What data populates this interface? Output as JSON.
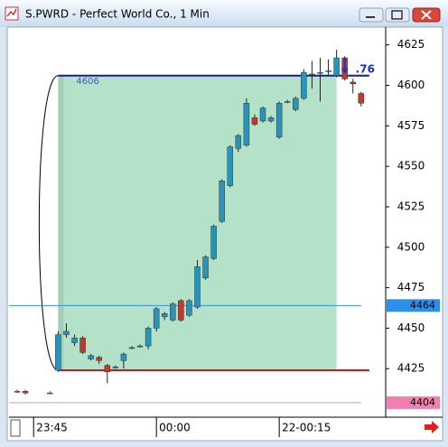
{
  "chart_data": {
    "type": "candlestick",
    "title": "S.PWRD - Perfect World Co., 1 Min",
    "x": [
      "23:43",
      "23:44",
      "23:47",
      "23:48",
      "23:49",
      "23:50",
      "23:51",
      "23:52",
      "23:53",
      "23:54",
      "23:55",
      "23:56",
      "23:57",
      "23:58",
      "23:59",
      "00:00",
      "00:01",
      "00:02",
      "00:03",
      "00:04",
      "00:05",
      "00:06",
      "00:07",
      "00:08",
      "00:09",
      "00:10",
      "00:11",
      "00:12",
      "00:13",
      "00:14",
      "00:15",
      "00:16",
      "00:17",
      "00:18",
      "00:19",
      "00:20",
      "00:21",
      "00:22",
      "00:23",
      "00:24",
      "00:25"
    ],
    "open": [
      4411,
      4411,
      4410,
      4424,
      4446,
      4441,
      4444,
      4431,
      4432,
      4427,
      4426,
      4430,
      4438,
      4439,
      4439,
      4450,
      4457,
      4455,
      4467,
      4458,
      4463,
      4481,
      4493,
      4516,
      4538,
      4561,
      4563,
      4580,
      4578,
      4578,
      4568,
      4590,
      4585,
      4592,
      4607,
      4608,
      4609,
      4606,
      4617,
      4602,
      4595
    ],
    "high": [
      4412,
      4412,
      4411,
      4448,
      4453,
      4446,
      4445,
      4434,
      4433,
      4428,
      4427,
      4435,
      4439,
      4440,
      4451,
      4463,
      4460,
      4466,
      4468,
      4468,
      4492,
      4495,
      4514,
      4542,
      4563,
      4570,
      4592,
      4582,
      4587,
      4581,
      4590,
      4591,
      4593,
      4610,
      4615,
      4617,
      4616,
      4622,
      4618,
      4604,
      4596
    ],
    "low": [
      4410,
      4409,
      4410,
      4423,
      4444,
      4439,
      4434,
      4430,
      4428,
      4416,
      4425,
      4425,
      4437,
      4438,
      4437,
      4448,
      4455,
      4454,
      4454,
      4457,
      4462,
      4480,
      4492,
      4515,
      4537,
      4559,
      4562,
      4575,
      4577,
      4577,
      4567,
      4589,
      4584,
      4591,
      4598,
      4590,
      4606,
      4605,
      4603,
      4595,
      4587
    ],
    "close": [
      4411,
      4410,
      4410,
      4446,
      4448,
      4444,
      4435,
      4433,
      4430,
      4423,
      4426,
      4434,
      4438,
      4439,
      4450,
      4462,
      4459,
      4465,
      4455,
      4467,
      4488,
      4494,
      4513,
      4541,
      4562,
      4569,
      4589,
      4576,
      4586,
      4580,
      4589,
      4590,
      4592,
      4608,
      4607,
      4608,
      4609,
      4617,
      4604,
      4601,
      4589
    ],
    "up_color": "#2a94b8",
    "down_color": "#c0392b",
    "xlim": [
      "23:42",
      "00:28"
    ],
    "xticks": [
      "23:45",
      "00:00",
      {
        "value": "00:15",
        "label": "22-00:15"
      }
    ],
    "ylim": [
      4395,
      4636
    ],
    "yticks": [
      4425,
      4450,
      4475,
      4500,
      4525,
      4550,
      4575,
      4600,
      4625
    ],
    "zone": {
      "from": "23:48",
      "to": "00:22",
      "top": 4606,
      "bottom": 4424,
      "color": "#b3e2c9"
    },
    "levels": [
      {
        "value": 4606,
        "color": "#1c1c8c",
        "from": "23:48",
        "to": "00:26",
        "label": "4606"
      },
      {
        "value": 4424,
        "color": "#d0181c",
        "from": "23:48",
        "to": "00:26"
      },
      {
        "value": 4464,
        "color": "#3a8fd6",
        "from": "23:42",
        "to": "00:25",
        "axis_label": "4464",
        "axis_color": "#2f8fe8"
      },
      {
        "value": 4404,
        "color": "#f090b8",
        "from": "23:42",
        "to": "00:25",
        "axis_label": "4404",
        "axis_color": "#f080b0"
      }
    ],
    "annotation": {
      "text": ".76",
      "color": "#1f2fd0"
    }
  }
}
